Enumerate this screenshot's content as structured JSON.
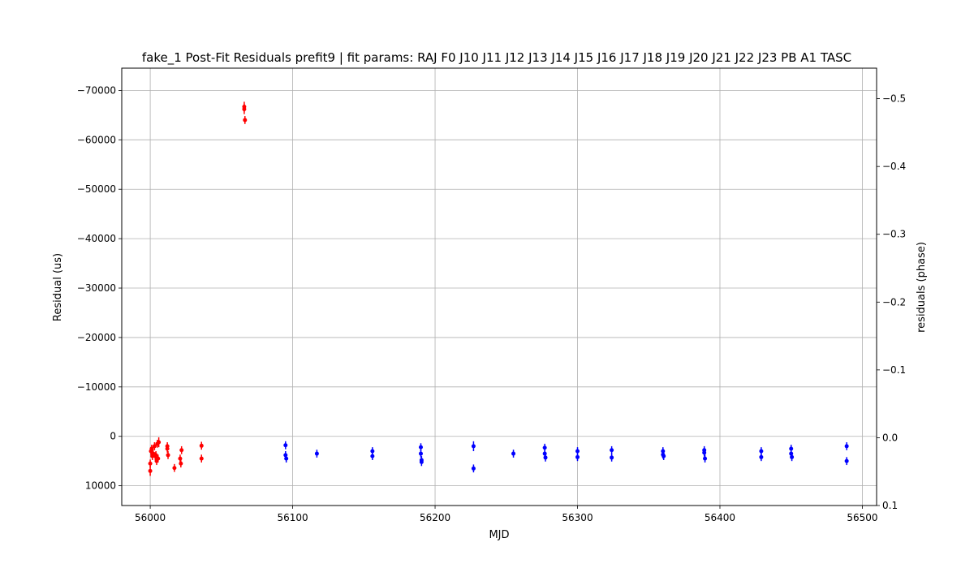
{
  "chart_data": {
    "type": "scatter",
    "title": "fake_1 Post-Fit Residuals prefit9 | fit params: RAJ F0 J10 J11 J12 J13 J14 J15 J16 J17 J18 J19 J20 J21 J22 J23 PB A1 TASC",
    "xlabel": "MJD",
    "ylabel": "Residual (us)",
    "ylabel_right": "residuals (phase)",
    "xlim": [
      55980,
      56510
    ],
    "ylim": [
      14000,
      -74500
    ],
    "y_inverted": true,
    "ylim_right": [
      0.1,
      -0.545
    ],
    "x_ticks": [
      56000,
      56100,
      56200,
      56300,
      56400,
      56500
    ],
    "x_tick_labels": [
      "56000",
      "56100",
      "56200",
      "56300",
      "56400",
      "56500"
    ],
    "y_ticks": [
      -70000,
      -60000,
      -50000,
      -40000,
      -30000,
      -20000,
      -10000,
      0,
      10000
    ],
    "y_tick_labels": [
      "−70000",
      "−60000",
      "−50000",
      "−40000",
      "−30000",
      "−20000",
      "−10000",
      "0",
      "10000"
    ],
    "y_right_ticks": [
      -0.5,
      -0.4,
      -0.3,
      -0.2,
      -0.1,
      0.0,
      0.1
    ],
    "y_right_tick_labels": [
      "−0.5",
      "−0.4",
      "−0.3",
      "−0.2",
      "−0.1",
      "0.0",
      "0.1"
    ],
    "grid": true,
    "legend": "none",
    "series": [
      {
        "color": "#ff0000",
        "points": [
          {
            "x": 56000,
            "y": 7000,
            "err": 1000
          },
          {
            "x": 56000,
            "y": 5500,
            "err": 800
          },
          {
            "x": 56000.5,
            "y": 3000,
            "err": 800
          },
          {
            "x": 56001,
            "y": 2500,
            "err": 800
          },
          {
            "x": 56001.5,
            "y": 4000,
            "err": 800
          },
          {
            "x": 56002,
            "y": 3500,
            "err": 800
          },
          {
            "x": 56003,
            "y": 2000,
            "err": 800
          },
          {
            "x": 56003.5,
            "y": 4000,
            "err": 800
          },
          {
            "x": 56004,
            "y": 3800,
            "err": 800
          },
          {
            "x": 56004.5,
            "y": 5000,
            "err": 800
          },
          {
            "x": 56005,
            "y": 1500,
            "err": 800
          },
          {
            "x": 56005.5,
            "y": 4500,
            "err": 800
          },
          {
            "x": 56006,
            "y": 1200,
            "err": 1000
          },
          {
            "x": 56012,
            "y": 2000,
            "err": 800
          },
          {
            "x": 56012,
            "y": 2500,
            "err": 800
          },
          {
            "x": 56012.5,
            "y": 3800,
            "err": 800
          },
          {
            "x": 56017,
            "y": 6400,
            "err": 800
          },
          {
            "x": 56021,
            "y": 4500,
            "err": 800
          },
          {
            "x": 56021.5,
            "y": 5500,
            "err": 800
          },
          {
            "x": 56022,
            "y": 2800,
            "err": 800
          },
          {
            "x": 56036,
            "y": 1900,
            "err": 800
          },
          {
            "x": 56036,
            "y": 4500,
            "err": 800
          },
          {
            "x": 56066,
            "y": -66700,
            "err": 1000
          },
          {
            "x": 56066,
            "y": -66200,
            "err": 1000
          },
          {
            "x": 56066.5,
            "y": -64000,
            "err": 800
          }
        ]
      },
      {
        "color": "#0000ff",
        "points": [
          {
            "x": 56095,
            "y": 1800,
            "err": 800
          },
          {
            "x": 56095,
            "y": 3800,
            "err": 800
          },
          {
            "x": 56095.5,
            "y": 4500,
            "err": 800
          },
          {
            "x": 56117,
            "y": 3500,
            "err": 800
          },
          {
            "x": 56156,
            "y": 3000,
            "err": 800
          },
          {
            "x": 56156,
            "y": 4000,
            "err": 800
          },
          {
            "x": 56190,
            "y": 2200,
            "err": 800
          },
          {
            "x": 56190,
            "y": 3500,
            "err": 800
          },
          {
            "x": 56190.5,
            "y": 4800,
            "err": 800
          },
          {
            "x": 56190.5,
            "y": 5200,
            "err": 800
          },
          {
            "x": 56227,
            "y": 2000,
            "err": 1000
          },
          {
            "x": 56227,
            "y": 6500,
            "err": 800
          },
          {
            "x": 56255,
            "y": 3500,
            "err": 800
          },
          {
            "x": 56277,
            "y": 2300,
            "err": 800
          },
          {
            "x": 56277,
            "y": 3500,
            "err": 800
          },
          {
            "x": 56277.5,
            "y": 4300,
            "err": 800
          },
          {
            "x": 56300,
            "y": 3000,
            "err": 800
          },
          {
            "x": 56300,
            "y": 4200,
            "err": 800
          },
          {
            "x": 56324,
            "y": 2800,
            "err": 800
          },
          {
            "x": 56324,
            "y": 4300,
            "err": 800
          },
          {
            "x": 56360,
            "y": 3000,
            "err": 800
          },
          {
            "x": 56360,
            "y": 3700,
            "err": 800
          },
          {
            "x": 56360.5,
            "y": 4000,
            "err": 800
          },
          {
            "x": 56389,
            "y": 2800,
            "err": 800
          },
          {
            "x": 56389,
            "y": 3300,
            "err": 800
          },
          {
            "x": 56389.5,
            "y": 4500,
            "err": 800
          },
          {
            "x": 56429,
            "y": 3000,
            "err": 800
          },
          {
            "x": 56429,
            "y": 4200,
            "err": 800
          },
          {
            "x": 56450,
            "y": 2500,
            "err": 800
          },
          {
            "x": 56450,
            "y": 3500,
            "err": 800
          },
          {
            "x": 56450.5,
            "y": 4200,
            "err": 800
          },
          {
            "x": 56489,
            "y": 2000,
            "err": 800
          },
          {
            "x": 56489,
            "y": 5000,
            "err": 800
          }
        ]
      }
    ]
  }
}
